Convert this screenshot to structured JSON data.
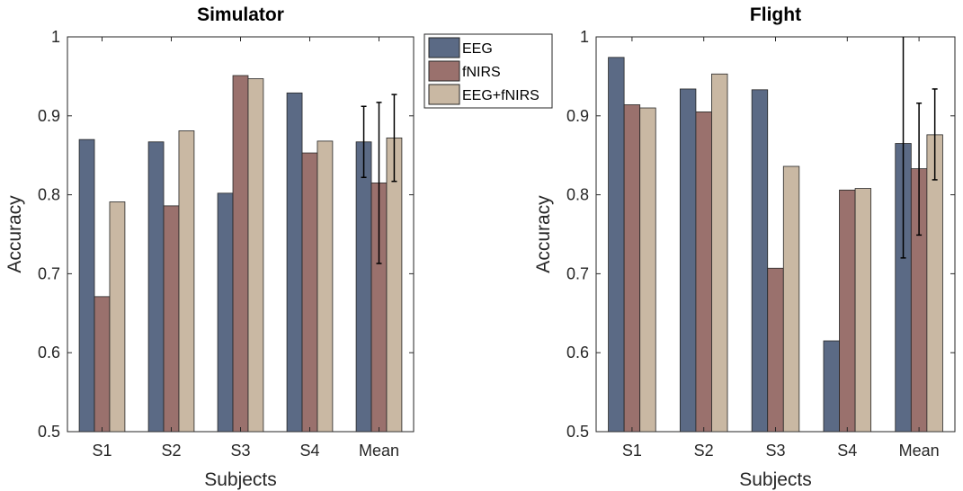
{
  "chart_data": [
    {
      "type": "bar",
      "title": "Simulator",
      "xlabel": "Subjects",
      "ylabel": "Accuracy",
      "ylim": [
        0.5,
        1
      ],
      "yticks": [
        "0.5",
        "0.6",
        "0.7",
        "0.8",
        "0.9",
        "1"
      ],
      "categories": [
        "S1",
        "S2",
        "S3",
        "S4",
        "Mean"
      ],
      "series": [
        {
          "name": "EEG",
          "values": [
            0.87,
            0.867,
            0.802,
            0.929,
            0.867
          ]
        },
        {
          "name": "fNIRS",
          "values": [
            0.671,
            0.786,
            0.951,
            0.853,
            0.815
          ]
        },
        {
          "name": "EEG+fNIRS",
          "values": [
            0.791,
            0.881,
            0.947,
            0.868,
            0.872
          ]
        }
      ],
      "error_bars": {
        "Mean": [
          [
            0.822,
            0.912
          ],
          [
            0.713,
            0.917
          ],
          [
            0.817,
            0.927
          ]
        ]
      }
    },
    {
      "type": "bar",
      "title": "Flight",
      "xlabel": "Subjects",
      "ylabel": "Accuracy",
      "ylim": [
        0.5,
        1
      ],
      "yticks": [
        "0.5",
        "0.6",
        "0.7",
        "0.8",
        "0.9",
        "1"
      ],
      "categories": [
        "S1",
        "S2",
        "S3",
        "S4",
        "Mean"
      ],
      "series": [
        {
          "name": "EEG",
          "values": [
            0.974,
            0.934,
            0.933,
            0.615,
            0.865
          ]
        },
        {
          "name": "fNIRS",
          "values": [
            0.914,
            0.905,
            0.707,
            0.806,
            0.833
          ]
        },
        {
          "name": "EEG+fNIRS",
          "values": [
            0.91,
            0.953,
            0.836,
            0.808,
            0.876
          ]
        }
      ],
      "error_bars": {
        "Mean": [
          [
            0.72,
            1.0
          ],
          [
            0.749,
            0.916
          ],
          [
            0.819,
            0.934
          ]
        ]
      }
    }
  ],
  "legend": {
    "placement": "between-charts-top",
    "entries": [
      {
        "label": "EEG",
        "color": "#5b6a85"
      },
      {
        "label": "fNIRS",
        "color": "#9a716d"
      },
      {
        "label": "EEG+fNIRS",
        "color": "#c9b8a3"
      }
    ]
  }
}
